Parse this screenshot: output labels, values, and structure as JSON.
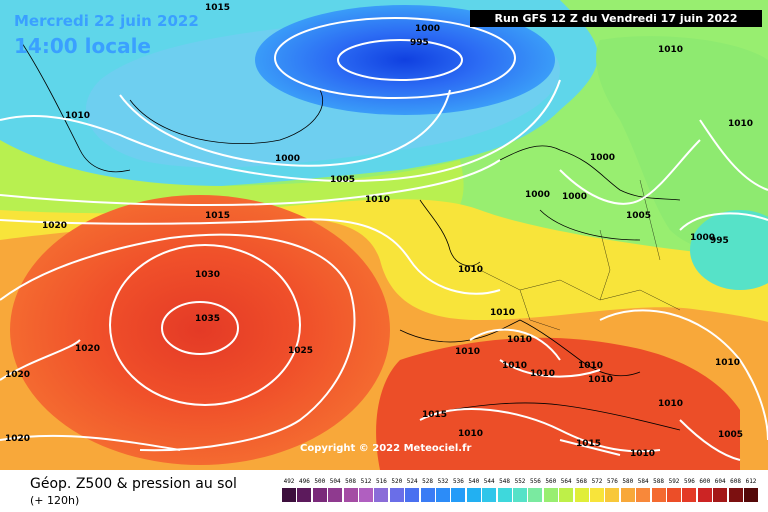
{
  "header": {
    "date": "Mercredi 22 juin 2022",
    "time": "14:00 locale",
    "run": "Run GFS 12 Z du Vendredi 17 juin 2022"
  },
  "copyright": "Copyright © 2022 Meteociel.fr",
  "footer": {
    "title": "Géop. Z500 & pression au sol",
    "subtitle": "(+ 120h)"
  },
  "legend": {
    "values": [
      "492",
      "496",
      "500",
      "504",
      "508",
      "512",
      "516",
      "520",
      "524",
      "528",
      "532",
      "536",
      "540",
      "544",
      "548",
      "552",
      "556",
      "560",
      "564",
      "568",
      "572",
      "576",
      "580",
      "584",
      "588",
      "592",
      "596",
      "600",
      "604",
      "608",
      "612"
    ],
    "colors": [
      "#3d0f3d",
      "#5c1a5c",
      "#7a2a7a",
      "#8f3a8f",
      "#a44ca4",
      "#b05fc0",
      "#8a6cd8",
      "#6a6ee8",
      "#4a70f0",
      "#3a7cf5",
      "#2c8cf8",
      "#249cf8",
      "#22b0f2",
      "#30c6ea",
      "#3ed8dc",
      "#56e2c8",
      "#7aeaa0",
      "#98ee70",
      "#bef048",
      "#e0ee38",
      "#f8e43a",
      "#f8c83a",
      "#f8a83a",
      "#f8883a",
      "#f46a30",
      "#ec4e28",
      "#e43a26",
      "#cc2424",
      "#a41818",
      "#7c1010",
      "#540808"
    ]
  },
  "pressure_labels": [
    "1015",
    "1000",
    "995",
    "1010",
    "1010",
    "1000",
    "1005",
    "1010",
    "1015",
    "1020",
    "1030",
    "1035",
    "1020",
    "1025",
    "1020",
    "1020",
    "1000",
    "1000",
    "1000",
    "1005",
    "1010",
    "1010",
    "1010",
    "1010",
    "1010",
    "1010",
    "1010",
    "1010",
    "1010",
    "1010",
    "1015",
    "1010",
    "1015",
    "1010",
    "1010",
    "1005",
    "1000",
    "995"
  ]
}
